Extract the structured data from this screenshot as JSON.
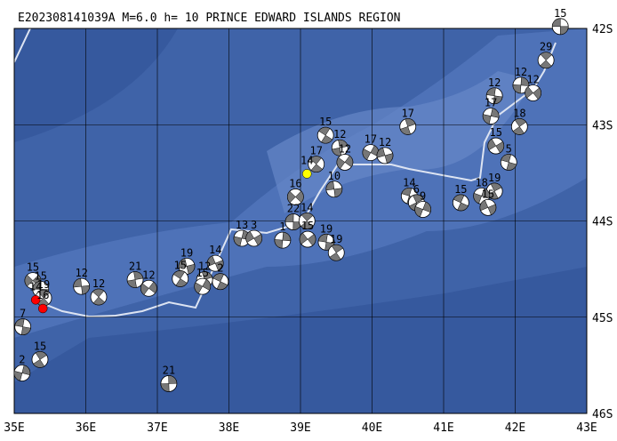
{
  "title": "E202308141039A M=6.0 h= 10 PRINCE EDWARD ISLANDS REGION",
  "axes": {
    "x": [
      {
        "value": 35,
        "label": "35E"
      },
      {
        "value": 36,
        "label": "36E"
      },
      {
        "value": 37,
        "label": "37E"
      },
      {
        "value": 38,
        "label": "38E"
      },
      {
        "value": 39,
        "label": "39E"
      },
      {
        "value": 40,
        "label": "40E"
      },
      {
        "value": 41,
        "label": "41E"
      },
      {
        "value": 42,
        "label": "42E"
      },
      {
        "value": 43,
        "label": "43E"
      }
    ],
    "y": [
      {
        "value": -42,
        "label": "42S"
      },
      {
        "value": -43,
        "label": "43S"
      },
      {
        "value": -44,
        "label": "44S"
      },
      {
        "value": -45,
        "label": "45S"
      },
      {
        "value": -46,
        "label": "46S"
      }
    ]
  },
  "events": [
    {
      "lon": 42.63,
      "lat": -41.98,
      "label": "15"
    },
    {
      "lon": 42.43,
      "lat": -42.33,
      "label": "29"
    },
    {
      "lon": 42.08,
      "lat": -42.59,
      "label": "12"
    },
    {
      "lon": 42.25,
      "lat": -42.67,
      "label": "12"
    },
    {
      "lon": 41.71,
      "lat": -42.7,
      "label": "12"
    },
    {
      "lon": 42.06,
      "lat": -43.02,
      "label": "18"
    },
    {
      "lon": 41.66,
      "lat": -42.91,
      "label": "17"
    },
    {
      "lon": 41.73,
      "lat": -43.22,
      "label": "15"
    },
    {
      "lon": 41.91,
      "lat": -43.39,
      "label": "5"
    },
    {
      "lon": 41.71,
      "lat": -43.69,
      "label": "19"
    },
    {
      "lon": 41.53,
      "lat": -43.74,
      "label": "18"
    },
    {
      "lon": 41.62,
      "lat": -43.86,
      "label": "15"
    },
    {
      "lon": 41.24,
      "lat": -43.81,
      "label": "15"
    },
    {
      "lon": 40.5,
      "lat": -43.02,
      "label": "17"
    },
    {
      "lon": 39.98,
      "lat": -43.29,
      "label": "17"
    },
    {
      "lon": 40.18,
      "lat": -43.32,
      "label": "12"
    },
    {
      "lon": 39.35,
      "lat": -43.11,
      "label": "15"
    },
    {
      "lon": 39.55,
      "lat": -43.24,
      "label": "12"
    },
    {
      "lon": 39.62,
      "lat": -43.39,
      "label": "12"
    },
    {
      "lon": 39.47,
      "lat": -43.67,
      "label": "10"
    },
    {
      "lon": 39.22,
      "lat": -43.41,
      "label": "17"
    },
    {
      "lon": 39.09,
      "lat": -43.51,
      "label": "14",
      "color": "#ffff00"
    },
    {
      "lon": 38.93,
      "lat": -43.75,
      "label": "16"
    },
    {
      "lon": 38.9,
      "lat": -44.01,
      "label": "22"
    },
    {
      "lon": 39.09,
      "lat": -44.0,
      "label": "14"
    },
    {
      "lon": 38.75,
      "lat": -44.2,
      "label": "1"
    },
    {
      "lon": 39.1,
      "lat": -44.19,
      "label": "15"
    },
    {
      "lon": 39.36,
      "lat": -44.22,
      "label": "19"
    },
    {
      "lon": 39.5,
      "lat": -44.33,
      "label": "19"
    },
    {
      "lon": 38.18,
      "lat": -44.18,
      "label": "13"
    },
    {
      "lon": 38.35,
      "lat": -44.18,
      "label": "3"
    },
    {
      "lon": 40.52,
      "lat": -43.74,
      "label": "14"
    },
    {
      "lon": 40.62,
      "lat": -43.81,
      "label": "6"
    },
    {
      "lon": 40.71,
      "lat": -43.88,
      "label": "9"
    },
    {
      "lon": 37.81,
      "lat": -44.44,
      "label": "14"
    },
    {
      "lon": 37.88,
      "lat": -44.63,
      "label": "2"
    },
    {
      "lon": 37.66,
      "lat": -44.61,
      "label": "12"
    },
    {
      "lon": 37.63,
      "lat": -44.68,
      "label": "15"
    },
    {
      "lon": 37.41,
      "lat": -44.47,
      "label": "19"
    },
    {
      "lon": 37.32,
      "lat": -44.6,
      "label": "15"
    },
    {
      "lon": 36.69,
      "lat": -44.61,
      "label": "21"
    },
    {
      "lon": 36.88,
      "lat": -44.7,
      "label": "12"
    },
    {
      "lon": 35.94,
      "lat": -44.68,
      "label": "12"
    },
    {
      "lon": 36.18,
      "lat": -44.79,
      "label": "12"
    },
    {
      "lon": 37.16,
      "lat": -45.69,
      "label": "21"
    },
    {
      "lon": 35.26,
      "lat": -44.62,
      "label": "15"
    },
    {
      "lon": 35.37,
      "lat": -44.71,
      "label": "15"
    },
    {
      "lon": 35.41,
      "lat": -44.8,
      "label": "19"
    },
    {
      "lon": 35.3,
      "lat": -44.82,
      "label": "14",
      "color": "#ff0000"
    },
    {
      "lon": 35.4,
      "lat": -44.91,
      "label": "16",
      "color": "#ff0000"
    },
    {
      "lon": 35.12,
      "lat": -45.1,
      "label": "7"
    },
    {
      "lon": 35.36,
      "lat": -45.44,
      "label": "15"
    },
    {
      "lon": 35.11,
      "lat": -45.58,
      "label": "2"
    }
  ]
}
